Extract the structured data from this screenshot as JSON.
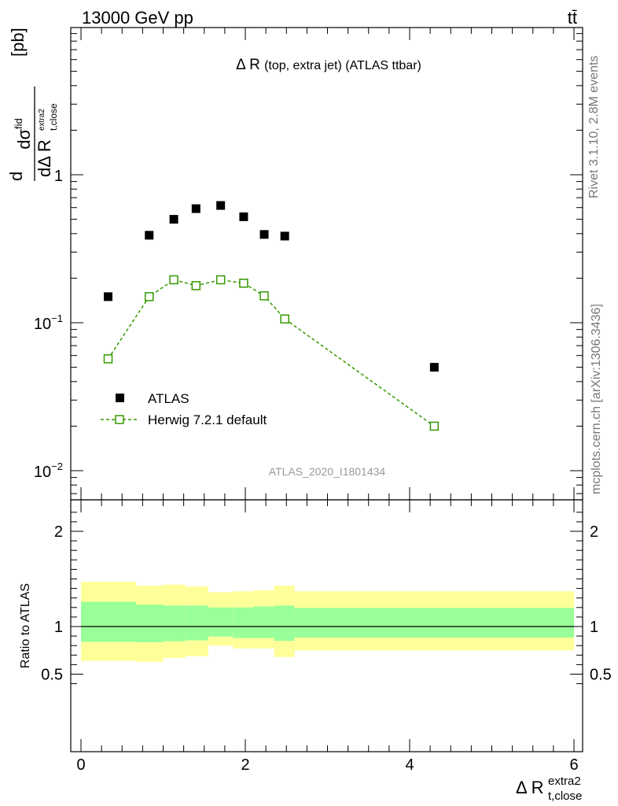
{
  "header": {
    "left": "13000 GeV pp",
    "right": "tt̄"
  },
  "side": {
    "rivet": "Rivet 3.1.10,  2.8M events",
    "mcplots": "mcplots.cern.ch [arXiv:1306.3436]"
  },
  "chart_data": [
    {
      "type": "scatter",
      "title": "Δ R",
      "title_suffix": "(top, extra jet) (ATLAS ttbar)",
      "ylabel": "dσ^fid / dΔ R_t,close^extra2 [pb]",
      "yscale": "log",
      "ylim": [
        0.007,
        10
      ],
      "xlim": [
        -0.15,
        6.1
      ],
      "y_ticks": [
        {
          "value": 1,
          "label": "1"
        },
        {
          "value": 0.1,
          "label": "10^-1"
        },
        {
          "value": 0.01,
          "label": "10^-2"
        }
      ],
      "analysis_label": "ATLAS_2020_I1801434",
      "legend_placement": "left",
      "series": [
        {
          "name": "ATLAS",
          "color": "#000000",
          "marker": "filled-square",
          "x": [
            0.33,
            0.83,
            1.13,
            1.4,
            1.7,
            1.98,
            2.23,
            2.48,
            4.3
          ],
          "y": [
            0.15,
            0.39,
            0.5,
            0.59,
            0.62,
            0.52,
            0.395,
            0.385,
            0.05
          ]
        },
        {
          "name": "Herwig 7.2.1 default",
          "color": "#339900",
          "marker": "open-square",
          "line": "dashed",
          "x": [
            0.33,
            0.83,
            1.13,
            1.4,
            1.7,
            1.98,
            2.23,
            2.48,
            4.3
          ],
          "y": [
            0.057,
            0.15,
            0.195,
            0.178,
            0.195,
            0.185,
            0.152,
            0.106,
            0.02
          ]
        }
      ]
    },
    {
      "type": "area",
      "ylabel": "Ratio to ATLAS",
      "xlabel": "Δ R_t,close^extra2",
      "xlim": [
        -0.15,
        6.1
      ],
      "ylim": [
        0.35,
        2.3
      ],
      "x_ticks": [
        0,
        2,
        4,
        6
      ],
      "y_ticks": [
        0.5,
        1,
        2
      ],
      "reference_line": 1,
      "bins": [
        {
          "x0": 0.0,
          "x1": 0.67,
          "inner": [
            0.84,
            1.26
          ],
          "outer": [
            0.64,
            1.47
          ]
        },
        {
          "x0": 0.67,
          "x1": 1.0,
          "inner": [
            0.835,
            1.23
          ],
          "outer": [
            0.63,
            1.43
          ]
        },
        {
          "x0": 1.0,
          "x1": 1.27,
          "inner": [
            0.845,
            1.22
          ],
          "outer": [
            0.67,
            1.44
          ]
        },
        {
          "x0": 1.27,
          "x1": 1.55,
          "inner": [
            0.855,
            1.22
          ],
          "outer": [
            0.69,
            1.42
          ]
        },
        {
          "x0": 1.55,
          "x1": 1.85,
          "inner": [
            0.895,
            1.2
          ],
          "outer": [
            0.8,
            1.36
          ]
        },
        {
          "x0": 1.85,
          "x1": 2.1,
          "inner": [
            0.88,
            1.2
          ],
          "outer": [
            0.77,
            1.37
          ]
        },
        {
          "x0": 2.1,
          "x1": 2.35,
          "inner": [
            0.88,
            1.21
          ],
          "outer": [
            0.77,
            1.38
          ]
        },
        {
          "x0": 2.35,
          "x1": 2.6,
          "inner": [
            0.85,
            1.22
          ],
          "outer": [
            0.68,
            1.43
          ]
        },
        {
          "x0": 2.6,
          "x1": 6.0,
          "inner": [
            0.885,
            1.195
          ],
          "outer": [
            0.75,
            1.37
          ]
        }
      ],
      "colors": {
        "inner": "#99ff99",
        "outer": "#ffff99"
      }
    }
  ]
}
